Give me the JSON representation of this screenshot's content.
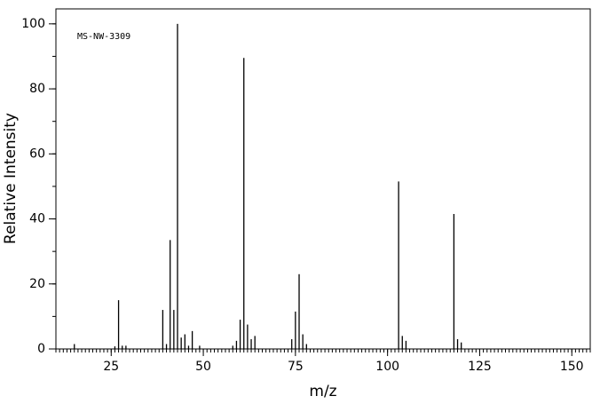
{
  "chart_data": {
    "type": "stick",
    "annotation": "MS-NW-3309",
    "xlabel": "m/z",
    "ylabel": "Relative Intensity",
    "x": [
      15,
      26,
      27,
      28,
      29,
      39,
      40,
      41,
      42,
      43,
      44,
      45,
      46,
      47,
      49,
      58,
      59,
      60,
      61,
      62,
      63,
      64,
      74,
      75,
      76,
      77,
      78,
      103,
      104,
      105,
      118,
      119,
      120
    ],
    "values": [
      1.5,
      0.8,
      15,
      1,
      1,
      12,
      1.5,
      33.5,
      12,
      100,
      3.5,
      4.5,
      1,
      5.5,
      1,
      1,
      2.5,
      9,
      89.5,
      7.5,
      3,
      4,
      3,
      11.5,
      23,
      4.5,
      1.5,
      51.5,
      4,
      2.5,
      41.5,
      3,
      2
    ],
    "color": "#000000",
    "xlim": [
      10,
      155
    ],
    "ylim": [
      0,
      104.6
    ],
    "xticks": [
      25,
      50,
      75,
      100,
      125,
      150
    ],
    "yticks": [
      0,
      20,
      40,
      60,
      80,
      100
    ],
    "x_minor_tick_interval": 1,
    "y_minor_tick_interval": 10
  }
}
